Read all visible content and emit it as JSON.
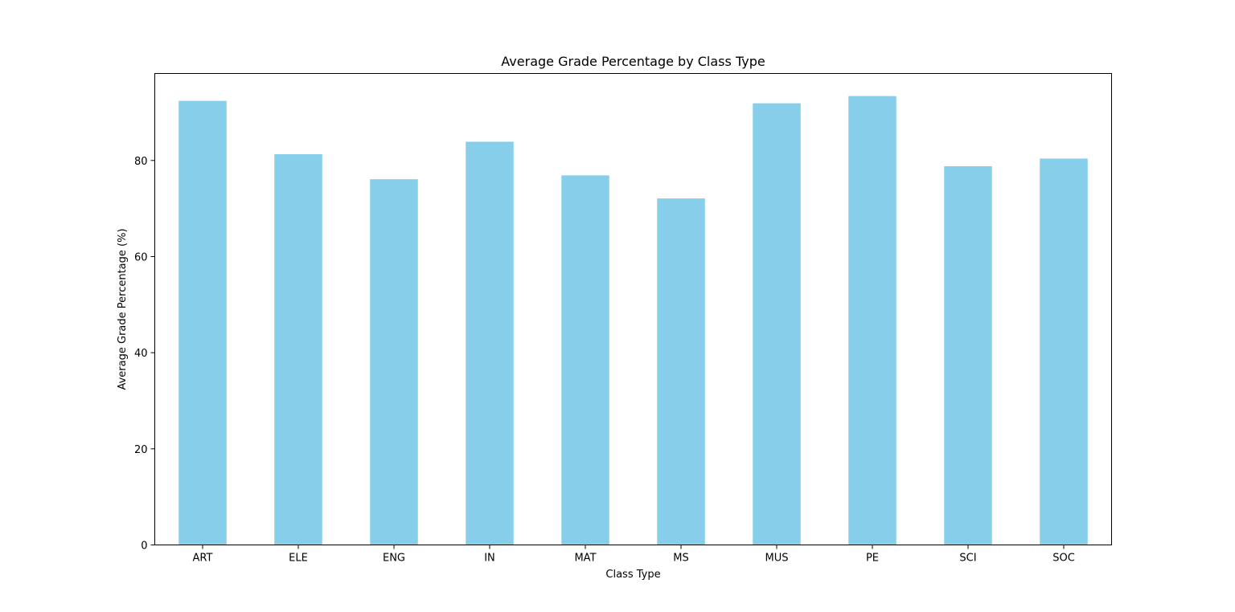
{
  "chart_data": {
    "type": "bar",
    "title": "Average Grade Percentage by Class Type",
    "xlabel": "Class Type",
    "ylabel": "Average Grade Percentage (%)",
    "categories": [
      "ART",
      "ELE",
      "ENG",
      "IN",
      "MAT",
      "MS",
      "MUS",
      "PE",
      "SCI",
      "SOC"
    ],
    "values": [
      92.4,
      81.3,
      76.1,
      83.9,
      76.9,
      72.1,
      91.9,
      93.4,
      78.8,
      80.4
    ],
    "ylim": [
      0,
      98.1
    ],
    "yticks": [
      0,
      20,
      40,
      60,
      80
    ],
    "bar_color": "#87CEEB",
    "grid": false,
    "legend": false
  }
}
